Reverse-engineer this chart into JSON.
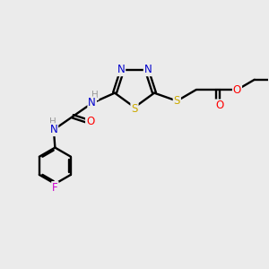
{
  "bg_color": "#ebebeb",
  "atom_colors": {
    "C": "#000000",
    "N": "#0000cc",
    "S": "#ccaa00",
    "O": "#ff0000",
    "F": "#cc00cc",
    "H": "#999999"
  },
  "figsize": [
    3.0,
    3.0
  ],
  "dpi": 100
}
